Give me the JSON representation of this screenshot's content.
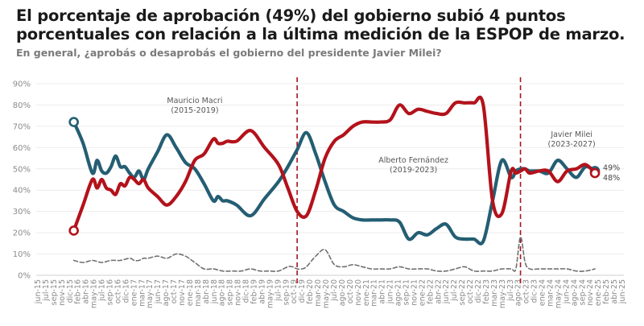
{
  "header": {
    "title_line1": "El porcentaje de aprobación (49%) del gobierno subió 4 puntos",
    "title_line2": "porcentuales con relación a la última medición de la ESPOP de marzo.",
    "subtitle": "En general, ¿aprobás o desaprobás el gobierno del presidente Javier Milei?"
  },
  "chart_data": {
    "type": "line",
    "title": "El porcentaje de aprobación (49%) del gobierno subió 4 puntos porcentuales con relación a la última medición de la ESPOP de marzo.",
    "subtitle": "En general, ¿aprobás o desaprobás el gobierno del presidente Javier Milei?",
    "xlabel": "",
    "ylabel": "",
    "ylim": [
      0,
      90
    ],
    "y_ticks": [
      "0%",
      "10%",
      "20%",
      "30%",
      "40%",
      "50%",
      "60%",
      "70%",
      "80%",
      "90%"
    ],
    "grid": true,
    "x_ticks": [
      "jun-15",
      "jul-15",
      "sep-15",
      "nov-15",
      "dic-15",
      "feb-16",
      "abr-16",
      "may-16",
      "jul-16",
      "sep-16",
      "oct-16",
      "dic-16",
      "ene-17",
      "mar-17",
      "may-17",
      "jun-17",
      "ago-17",
      "oct-17",
      "nov-17",
      "ene-18",
      "mar-18",
      "abr-18",
      "jun-18",
      "ago-18",
      "sep-18",
      "nov-18",
      "dic-18",
      "feb-19",
      "abr-19",
      "may-19",
      "jul-19",
      "sep-19",
      "oct-19",
      "dic-19",
      "feb-20",
      "mar-20",
      "may-20",
      "jul-20",
      "ago-20",
      "oct-20",
      "nov-20",
      "ene-21",
      "mar-21",
      "abr-21",
      "jun-21",
      "ago-21",
      "sep-21",
      "nov-21",
      "ene-22",
      "feb-22",
      "abr-22",
      "jun-22",
      "jul-22",
      "sep-22",
      "oct-22",
      "dic-22",
      "feb-23",
      "mar-23",
      "may-23",
      "jul-23",
      "ago-23",
      "oct-23",
      "dic-23",
      "ene-24",
      "mar-24",
      "may-24",
      "jun-24",
      "ago-24",
      "sep-24",
      "nov-24",
      "ene-25",
      "feb-25",
      "abr-25",
      "jun-25"
    ],
    "x_months_note": "x values are months since jun-15",
    "series": [
      {
        "name": "Aprobación",
        "color": "#245e73",
        "x": [
          6,
          8,
          10,
          11,
          12,
          13,
          14,
          15,
          16,
          17,
          18,
          19,
          20,
          21,
          22,
          24,
          26,
          28,
          30,
          32,
          34,
          36,
          37,
          38,
          39,
          41,
          44,
          47,
          50,
          52,
          54,
          56,
          58,
          60,
          62,
          64,
          66,
          68,
          70,
          72,
          74,
          76,
          78,
          80,
          82,
          84,
          86,
          88,
          90,
          92,
          94,
          96,
          98,
          100,
          101,
          102,
          103,
          104,
          106,
          108,
          110,
          112,
          114,
          116,
          118
        ],
        "values": [
          72,
          62,
          48,
          54,
          49,
          48,
          51,
          56,
          51,
          51,
          48,
          46,
          49,
          45,
          50,
          58,
          66,
          60,
          53,
          50,
          43,
          35,
          37,
          35,
          35,
          33,
          28,
          36,
          44,
          51,
          59,
          67,
          57,
          44,
          33,
          30,
          27,
          26,
          26,
          26,
          26,
          25,
          17,
          20,
          19,
          22,
          24,
          18,
          17,
          17,
          16,
          35,
          54,
          46,
          49,
          50,
          50,
          49,
          49,
          48,
          54,
          50,
          46,
          51,
          49
        ],
        "end_label": "49%"
      },
      {
        "name": "Desaprobación",
        "color": "#b3121b",
        "x": [
          6,
          8,
          10,
          11,
          12,
          13,
          14,
          15,
          16,
          17,
          18,
          19,
          20,
          21,
          22,
          24,
          26,
          28,
          30,
          32,
          34,
          36,
          37,
          38,
          39,
          41,
          44,
          47,
          50,
          52,
          54,
          56,
          58,
          60,
          62,
          64,
          66,
          68,
          70,
          72,
          74,
          76,
          78,
          80,
          82,
          84,
          86,
          88,
          90,
          92,
          94,
          96,
          98,
          100,
          101,
          102,
          103,
          104,
          106,
          108,
          110,
          112,
          114,
          116,
          118
        ],
        "values": [
          21,
          33,
          45,
          41,
          45,
          41,
          40,
          38,
          43,
          42,
          46,
          45,
          43,
          45,
          41,
          37,
          33,
          37,
          44,
          54,
          57,
          64,
          62,
          62,
          63,
          63,
          68,
          60,
          52,
          41,
          30,
          28,
          40,
          55,
          63,
          66,
          70,
          72,
          72,
          72,
          73,
          80,
          76,
          78,
          77,
          76,
          76,
          81,
          81,
          81,
          80,
          35,
          29,
          49,
          48,
          49,
          50,
          48,
          49,
          49,
          44,
          49,
          50,
          52,
          48
        ],
        "end_label": "48%"
      },
      {
        "name": "Ns/Nc",
        "color": "#707070",
        "style": "dashed",
        "x": [
          6,
          8,
          10,
          12,
          14,
          16,
          18,
          19,
          20,
          21,
          22,
          24,
          26,
          28,
          30,
          32,
          34,
          36,
          38,
          40,
          42,
          44,
          46,
          48,
          50,
          52,
          53,
          54,
          55,
          56,
          58,
          60,
          62,
          64,
          66,
          68,
          70,
          72,
          74,
          76,
          78,
          80,
          82,
          84,
          86,
          88,
          90,
          92,
          94,
          96,
          98,
          100,
          101,
          102,
          103,
          104,
          106,
          108,
          110,
          112,
          114,
          116,
          118
        ],
        "values": [
          7,
          6,
          7,
          6,
          7,
          7,
          8,
          7,
          7,
          8,
          8,
          9,
          8,
          10,
          9,
          6,
          3,
          3,
          2,
          2,
          2,
          3,
          2,
          2,
          2,
          4,
          4,
          3,
          3,
          4,
          9,
          12,
          5,
          4,
          5,
          4,
          3,
          3,
          3,
          4,
          3,
          3,
          3,
          2,
          2,
          3,
          4,
          2,
          2,
          2,
          3,
          3,
          3,
          18,
          6,
          3,
          3,
          3,
          3,
          3,
          2,
          2,
          3
        ],
        "end_label": ""
      }
    ],
    "vertical_markers": [
      {
        "x": 54,
        "label": "dic-19"
      },
      {
        "x": 102,
        "label": "dic-23"
      }
    ],
    "annotations": [
      {
        "text_line1": "Mauricio Macri",
        "text_line2": "(2015-2019)",
        "x": 32,
        "y": 81
      },
      {
        "text_line1": "Alberto Fernández",
        "text_line2": "(2019-2023)",
        "x": 79,
        "y": 53
      },
      {
        "text_line1": "Javier Milei",
        "text_line2": "(2023-2027)",
        "x": 113,
        "y": 65
      }
    ],
    "legend": "none"
  }
}
